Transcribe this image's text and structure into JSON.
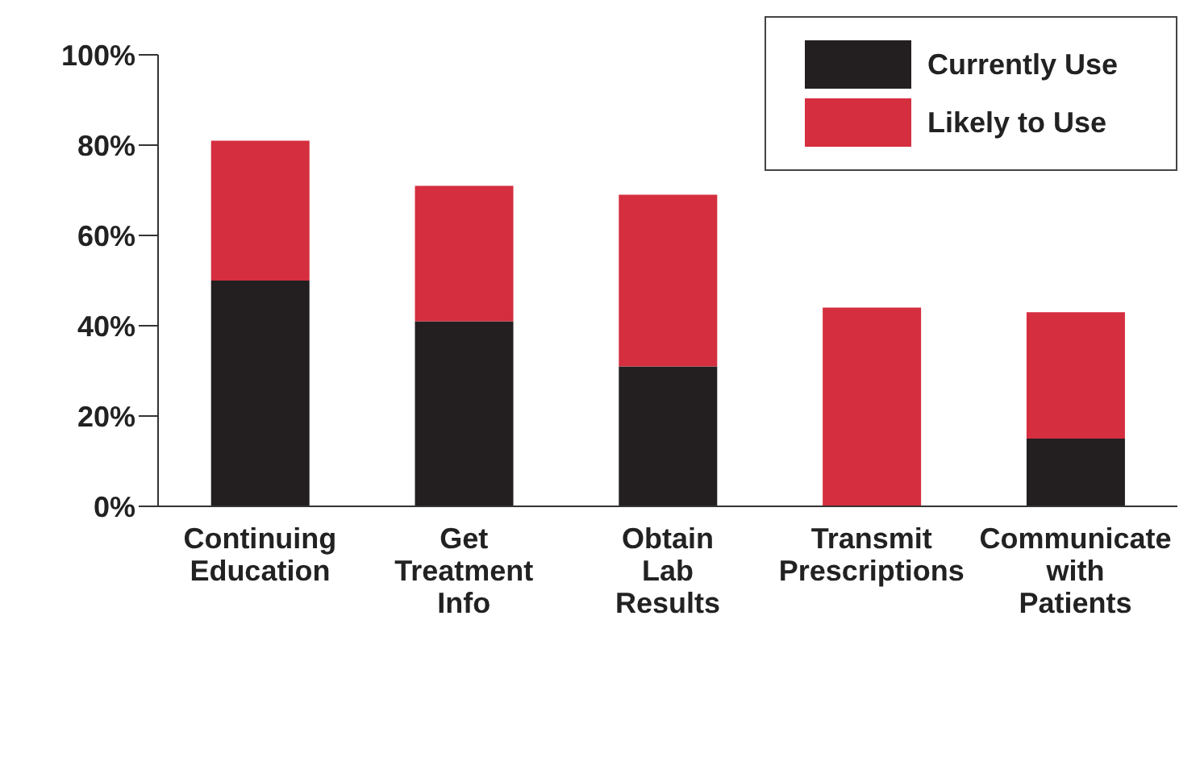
{
  "chart_data": {
    "type": "bar",
    "stacked": true,
    "categories": [
      "Continuing Education",
      "Get Treatment Info",
      "Obtain Lab Results",
      "Transmit Prescriptions",
      "Communicate with Patients"
    ],
    "series": [
      {
        "name": "Currently Use",
        "color": "#231f20",
        "values": [
          50,
          41,
          31,
          0,
          15
        ]
      },
      {
        "name": "Likely to Use",
        "color": "#d42e3f",
        "values": [
          31,
          30,
          38,
          44,
          28
        ]
      }
    ],
    "ylim": [
      0,
      100
    ],
    "yticks": [
      {
        "value": 0,
        "label": "0%"
      },
      {
        "value": 20,
        "label": "20%"
      },
      {
        "value": 40,
        "label": "40%"
      },
      {
        "value": 60,
        "label": "60%"
      },
      {
        "value": 80,
        "label": "80%"
      },
      {
        "value": 100,
        "label": "100%"
      }
    ],
    "grid": false,
    "legend": "top right"
  }
}
